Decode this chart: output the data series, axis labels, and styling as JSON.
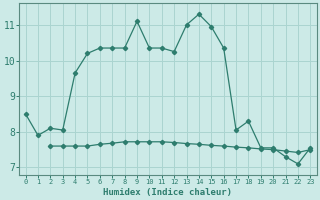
{
  "xlabel": "Humidex (Indice chaleur)",
  "bg_color": "#cceae7",
  "grid_color": "#aad4d0",
  "line_color": "#2e7d6e",
  "spine_color": "#5a8a80",
  "xlim": [
    -0.5,
    23.5
  ],
  "ylim": [
    6.8,
    11.6
  ],
  "yticks": [
    7,
    8,
    9,
    10,
    11
  ],
  "xticks": [
    0,
    1,
    2,
    3,
    4,
    5,
    6,
    7,
    8,
    9,
    10,
    11,
    12,
    13,
    14,
    15,
    16,
    17,
    18,
    19,
    20,
    21,
    22,
    23
  ],
  "series1_x": [
    0,
    1,
    2,
    3,
    4,
    5,
    6,
    7,
    8,
    9,
    10,
    11,
    12,
    13,
    14,
    15,
    16,
    17,
    18,
    19,
    20,
    21,
    22,
    23
  ],
  "series1_y": [
    8.5,
    7.9,
    8.1,
    8.05,
    9.65,
    10.2,
    10.35,
    10.35,
    10.35,
    11.1,
    10.35,
    10.35,
    10.25,
    11.0,
    11.3,
    10.95,
    10.35,
    8.05,
    8.3,
    7.55,
    7.55,
    7.3,
    7.1,
    7.55
  ],
  "series2_x": [
    2,
    3,
    4,
    5,
    6,
    7,
    8,
    9,
    10,
    11,
    12,
    13,
    14,
    15,
    16,
    17,
    18,
    19,
    20,
    21,
    22,
    23
  ],
  "series2_y": [
    7.6,
    7.6,
    7.6,
    7.6,
    7.65,
    7.68,
    7.72,
    7.72,
    7.72,
    7.72,
    7.7,
    7.67,
    7.65,
    7.62,
    7.6,
    7.57,
    7.55,
    7.52,
    7.5,
    7.46,
    7.42,
    7.5
  ]
}
